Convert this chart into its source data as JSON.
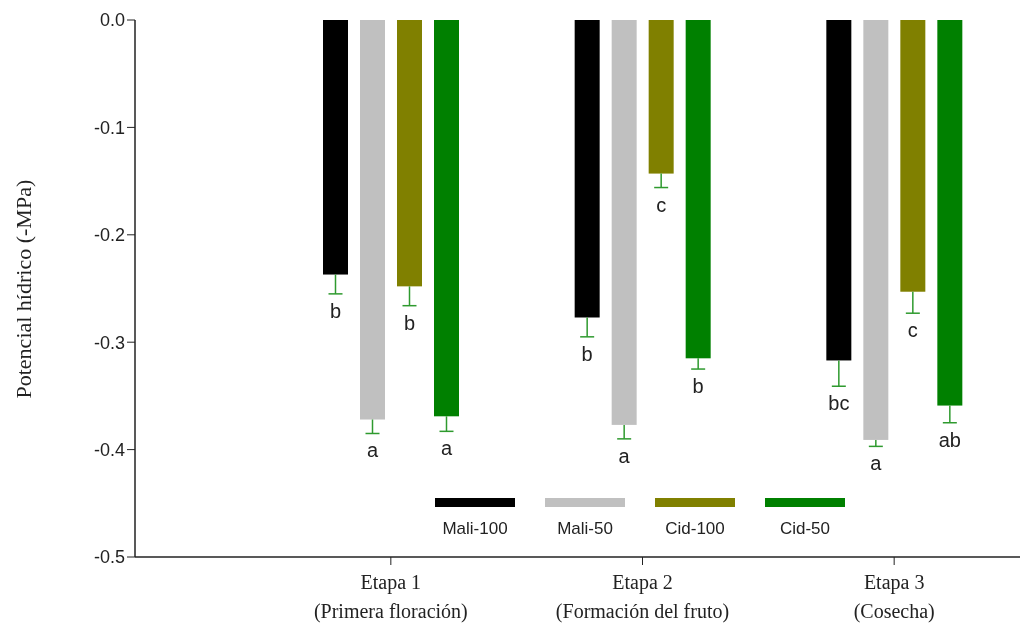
{
  "chart_data": {
    "type": "bar",
    "ylabel": "Potencial hídrico (-MPa)",
    "categories": [
      "Etapa 1\n(Primera floración)",
      "Etapa 2\n(Formación del fruto)",
      "Etapa 3\n(Cosecha)"
    ],
    "series": [
      {
        "name": "Mali-100",
        "color": "#000000",
        "values": [
          -0.237,
          -0.277,
          -0.317
        ],
        "errors": [
          [
            -0.255,
            -0.237
          ],
          [
            -0.295,
            -0.277
          ],
          [
            -0.341,
            -0.317
          ]
        ],
        "value_labels": [
          "b",
          "b",
          "bc"
        ]
      },
      {
        "name": "Mali-50",
        "color": "#c0c0c0",
        "values": [
          -0.372,
          -0.377,
          -0.391
        ],
        "errors": [
          [
            -0.385,
            -0.372
          ],
          [
            -0.39,
            -0.377
          ],
          [
            -0.397,
            -0.391
          ]
        ],
        "value_labels": [
          "a",
          "a",
          "a"
        ]
      },
      {
        "name": "Cid-100",
        "color": "#808000",
        "values": [
          -0.248,
          -0.143,
          -0.253
        ],
        "errors": [
          [
            -0.266,
            -0.248
          ],
          [
            -0.156,
            -0.143
          ],
          [
            -0.273,
            -0.253
          ]
        ],
        "value_labels": [
          "b",
          "c",
          "c"
        ]
      },
      {
        "name": "Cid-50",
        "color": "#008000",
        "values": [
          -0.369,
          -0.315,
          -0.359
        ],
        "errors": [
          [
            -0.383,
            -0.369
          ],
          [
            -0.325,
            -0.315
          ],
          [
            -0.375,
            -0.359
          ]
        ],
        "value_labels": [
          "a",
          "b",
          "ab"
        ]
      }
    ],
    "ylim": [
      -0.5,
      0
    ],
    "yticks": [
      {
        "value": -0.5,
        "label": "-0.5"
      },
      {
        "value": -0.4,
        "label": "-0.4"
      },
      {
        "value": -0.3,
        "label": "-0.3"
      },
      {
        "value": -0.2,
        "label": "-0.2"
      },
      {
        "value": -0.1,
        "label": "-0.1"
      },
      {
        "value": 0,
        "label": "0.0"
      }
    ],
    "grid": false,
    "legend": "bottom"
  }
}
